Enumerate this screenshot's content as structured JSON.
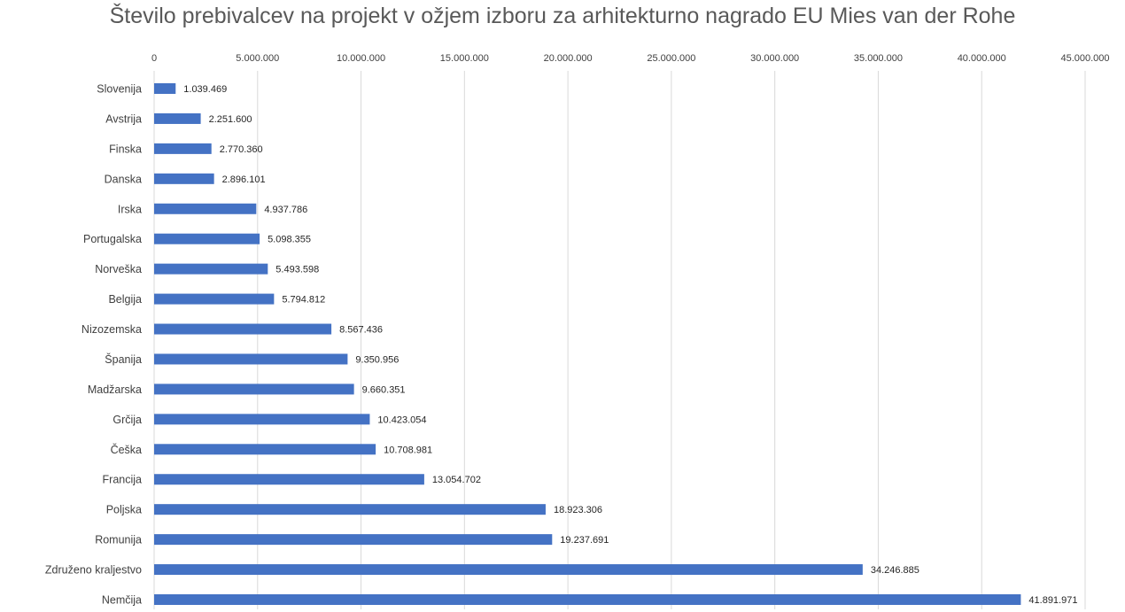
{
  "chart_data": {
    "type": "bar",
    "orientation": "horizontal",
    "title": "Število prebivalcev na projekt v ožjem izboru za arhitekturno nagrado EU Mies van der Rohe",
    "xlabel": "",
    "ylabel": "",
    "xlim": [
      0,
      45000000
    ],
    "axis_position": "top",
    "grid": true,
    "legend": "none",
    "bar_color": "#4472c4",
    "x_ticks": [
      "0",
      "5.000.000",
      "10.000.000",
      "15.000.000",
      "20.000.000",
      "25.000.000",
      "30.000.000",
      "35.000.000",
      "40.000.000",
      "45.000.000"
    ],
    "x_tick_values": [
      0,
      5000000,
      10000000,
      15000000,
      20000000,
      25000000,
      30000000,
      35000000,
      40000000,
      45000000
    ],
    "categories": [
      "Slovenija",
      "Avstrija",
      "Finska",
      "Danska",
      "Irska",
      "Portugalska",
      "Norveška",
      "Belgija",
      "Nizozemska",
      "Španija",
      "Madžarska",
      "Grčija",
      "Češka",
      "Francija",
      "Poljska",
      "Romunija",
      "Združeno kraljestvo",
      "Nemčija"
    ],
    "values": [
      1039469,
      2251600,
      2770360,
      2896101,
      4937786,
      5098355,
      5493598,
      5794812,
      8567436,
      9350956,
      9660351,
      10423054,
      10708981,
      13054702,
      18923306,
      19237691,
      34246885,
      41891971
    ],
    "data_labels": [
      "1.039.469",
      "2.251.600",
      "2.770.360",
      "2.896.101",
      "4.937.786",
      "5.098.355",
      "5.493.598",
      "5.794.812",
      "8.567.436",
      "9.350.956",
      "9.660.351",
      "10.423.054",
      "10.708.981",
      "13.054.702",
      "18.923.306",
      "19.237.691",
      "34.246.885",
      "41.891.971"
    ]
  }
}
